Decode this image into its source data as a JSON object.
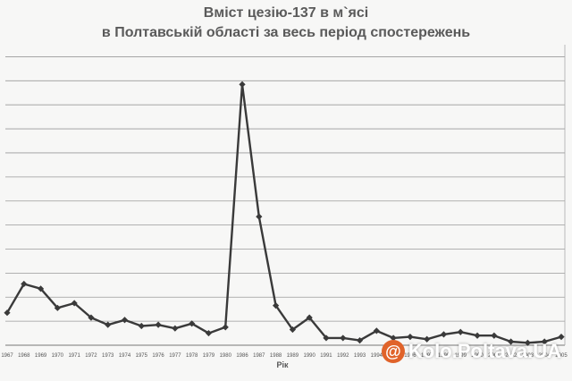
{
  "chart_data": {
    "type": "line",
    "title_line1": "Вміст цезію-137 в м`ясі",
    "title_line2": "в Полтавській області за весь період спостережень",
    "xlabel": "Рік",
    "ylabel": "",
    "grid": true,
    "categories": [
      "1967",
      "1968",
      "1969",
      "1970",
      "1971",
      "1972",
      "1973",
      "1974",
      "1975",
      "1976",
      "1977",
      "1978",
      "1979",
      "1980",
      "1986",
      "1987",
      "1988",
      "1989",
      "1990",
      "1991",
      "1992",
      "1993",
      "1994",
      "1995",
      "1996",
      "1997",
      "1998",
      "1999",
      "2000",
      "2001",
      "2002",
      "2003",
      "2004",
      "2005"
    ],
    "series": [
      {
        "values": [
          13.5,
          25.5,
          23.5,
          15.5,
          17.5,
          11.5,
          8.5,
          10.5,
          8,
          8.5,
          7,
          9,
          5,
          7.5,
          108.5,
          53.5,
          16.5,
          6.5,
          11.5,
          3,
          3,
          2,
          6,
          3,
          3.5,
          2.5,
          4.5,
          5.5,
          4,
          4,
          1.5,
          1,
          1.5,
          3.5
        ]
      }
    ],
    "ylim": [
      0,
      125
    ],
    "color": "#3a3a3a"
  },
  "watermark": {
    "icon": "at-sign-icon",
    "text": "Kolo.Poltava.UA"
  }
}
